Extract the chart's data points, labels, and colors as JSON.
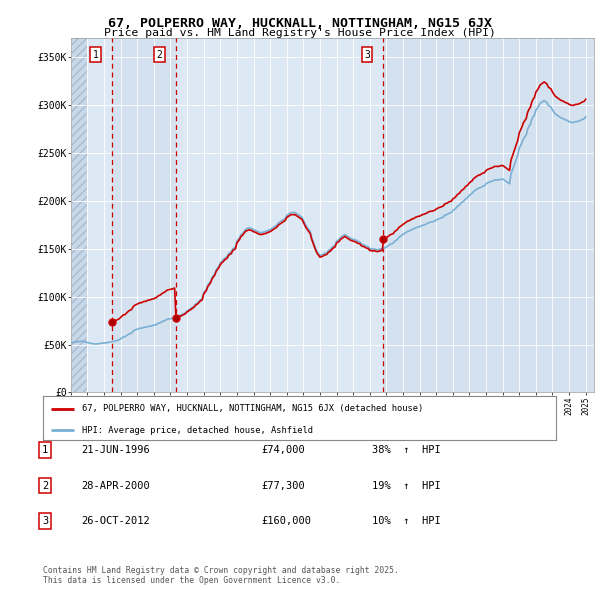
{
  "title_line1": "67, POLPERRO WAY, HUCKNALL, NOTTINGHAM, NG15 6JX",
  "title_line2": "Price paid vs. HM Land Registry's House Price Index (HPI)",
  "legend_label_red": "67, POLPERRO WAY, HUCKNALL, NOTTINGHAM, NG15 6JX (detached house)",
  "legend_label_blue": "HPI: Average price, detached house, Ashfield",
  "footer_line1": "Contains HM Land Registry data © Crown copyright and database right 2025.",
  "footer_line2": "This data is licensed under the Open Government Licence v3.0.",
  "transactions": [
    {
      "num": 1,
      "date": "21-JUN-1996",
      "price": 74000,
      "pct": "38%",
      "dir": "↑",
      "year": 1996.47
    },
    {
      "num": 2,
      "date": "28-APR-2000",
      "price": 77300,
      "pct": "19%",
      "dir": "↑",
      "year": 2000.32
    },
    {
      "num": 3,
      "date": "26-OCT-2012",
      "price": 160000,
      "pct": "10%",
      "dir": "↑",
      "year": 2012.82
    }
  ],
  "ylim": [
    0,
    370000
  ],
  "yticks": [
    0,
    50000,
    100000,
    150000,
    200000,
    250000,
    300000,
    350000
  ],
  "ytick_labels": [
    "£0",
    "£50K",
    "£100K",
    "£150K",
    "£200K",
    "£250K",
    "£300K",
    "£350K"
  ],
  "background_plot": "#dce9f5",
  "background_hatch": "#c8d8ea",
  "highlight_col": "#cddcec",
  "grid_color": "#ffffff",
  "red_color": "#cc0000",
  "blue_color": "#7aafd4",
  "hpi_data": {
    "years": [
      1994.0,
      1994.083,
      1994.167,
      1994.25,
      1994.333,
      1994.417,
      1994.5,
      1994.583,
      1994.667,
      1994.75,
      1994.833,
      1994.917,
      1995.0,
      1995.083,
      1995.167,
      1995.25,
      1995.333,
      1995.417,
      1995.5,
      1995.583,
      1995.667,
      1995.75,
      1995.833,
      1995.917,
      1996.0,
      1996.083,
      1996.167,
      1996.25,
      1996.333,
      1996.417,
      1996.5,
      1996.583,
      1996.667,
      1996.75,
      1996.833,
      1996.917,
      1997.0,
      1997.083,
      1997.167,
      1997.25,
      1997.333,
      1997.417,
      1997.5,
      1997.583,
      1997.667,
      1997.75,
      1997.833,
      1997.917,
      1998.0,
      1998.083,
      1998.167,
      1998.25,
      1998.333,
      1998.417,
      1998.5,
      1998.583,
      1998.667,
      1998.75,
      1998.833,
      1998.917,
      1999.0,
      1999.083,
      1999.167,
      1999.25,
      1999.333,
      1999.417,
      1999.5,
      1999.583,
      1999.667,
      1999.75,
      1999.833,
      1999.917,
      2000.0,
      2000.083,
      2000.167,
      2000.25,
      2000.333,
      2000.417,
      2000.5,
      2000.583,
      2000.667,
      2000.75,
      2000.833,
      2000.917,
      2001.0,
      2001.083,
      2001.167,
      2001.25,
      2001.333,
      2001.417,
      2001.5,
      2001.583,
      2001.667,
      2001.75,
      2001.833,
      2001.917,
      2002.0,
      2002.083,
      2002.167,
      2002.25,
      2002.333,
      2002.417,
      2002.5,
      2002.583,
      2002.667,
      2002.75,
      2002.833,
      2002.917,
      2003.0,
      2003.083,
      2003.167,
      2003.25,
      2003.333,
      2003.417,
      2003.5,
      2003.583,
      2003.667,
      2003.75,
      2003.833,
      2003.917,
      2004.0,
      2004.083,
      2004.167,
      2004.25,
      2004.333,
      2004.417,
      2004.5,
      2004.583,
      2004.667,
      2004.75,
      2004.833,
      2004.917,
      2005.0,
      2005.083,
      2005.167,
      2005.25,
      2005.333,
      2005.417,
      2005.5,
      2005.583,
      2005.667,
      2005.75,
      2005.833,
      2005.917,
      2006.0,
      2006.083,
      2006.167,
      2006.25,
      2006.333,
      2006.417,
      2006.5,
      2006.583,
      2006.667,
      2006.75,
      2006.833,
      2006.917,
      2007.0,
      2007.083,
      2007.167,
      2007.25,
      2007.333,
      2007.417,
      2007.5,
      2007.583,
      2007.667,
      2007.75,
      2007.833,
      2007.917,
      2008.0,
      2008.083,
      2008.167,
      2008.25,
      2008.333,
      2008.417,
      2008.5,
      2008.583,
      2008.667,
      2008.75,
      2008.833,
      2008.917,
      2009.0,
      2009.083,
      2009.167,
      2009.25,
      2009.333,
      2009.417,
      2009.5,
      2009.583,
      2009.667,
      2009.75,
      2009.833,
      2009.917,
      2010.0,
      2010.083,
      2010.167,
      2010.25,
      2010.333,
      2010.417,
      2010.5,
      2010.583,
      2010.667,
      2010.75,
      2010.833,
      2010.917,
      2011.0,
      2011.083,
      2011.167,
      2011.25,
      2011.333,
      2011.417,
      2011.5,
      2011.583,
      2011.667,
      2011.75,
      2011.833,
      2011.917,
      2012.0,
      2012.083,
      2012.167,
      2012.25,
      2012.333,
      2012.417,
      2012.5,
      2012.583,
      2012.667,
      2012.75,
      2012.833,
      2012.917,
      2013.0,
      2013.083,
      2013.167,
      2013.25,
      2013.333,
      2013.417,
      2013.5,
      2013.583,
      2013.667,
      2013.75,
      2013.833,
      2013.917,
      2014.0,
      2014.083,
      2014.167,
      2014.25,
      2014.333,
      2014.417,
      2014.5,
      2014.583,
      2014.667,
      2014.75,
      2014.833,
      2014.917,
      2015.0,
      2015.083,
      2015.167,
      2015.25,
      2015.333,
      2015.417,
      2015.5,
      2015.583,
      2015.667,
      2015.75,
      2015.833,
      2015.917,
      2016.0,
      2016.083,
      2016.167,
      2016.25,
      2016.333,
      2016.417,
      2016.5,
      2016.583,
      2016.667,
      2016.75,
      2016.833,
      2016.917,
      2017.0,
      2017.083,
      2017.167,
      2017.25,
      2017.333,
      2017.417,
      2017.5,
      2017.583,
      2017.667,
      2017.75,
      2017.833,
      2017.917,
      2018.0,
      2018.083,
      2018.167,
      2018.25,
      2018.333,
      2018.417,
      2018.5,
      2018.583,
      2018.667,
      2018.75,
      2018.833,
      2018.917,
      2019.0,
      2019.083,
      2019.167,
      2019.25,
      2019.333,
      2019.417,
      2019.5,
      2019.583,
      2019.667,
      2019.75,
      2019.833,
      2019.917,
      2020.0,
      2020.083,
      2020.167,
      2020.25,
      2020.333,
      2020.417,
      2020.5,
      2020.583,
      2020.667,
      2020.75,
      2020.833,
      2020.917,
      2021.0,
      2021.083,
      2021.167,
      2021.25,
      2021.333,
      2021.417,
      2021.5,
      2021.583,
      2021.667,
      2021.75,
      2021.833,
      2021.917,
      2022.0,
      2022.083,
      2022.167,
      2022.25,
      2022.333,
      2022.417,
      2022.5,
      2022.583,
      2022.667,
      2022.75,
      2022.833,
      2022.917,
      2023.0,
      2023.083,
      2023.167,
      2023.25,
      2023.333,
      2023.417,
      2023.5,
      2023.583,
      2023.667,
      2023.75,
      2023.833,
      2023.917,
      2024.0,
      2024.083,
      2024.167,
      2024.25,
      2024.333,
      2024.417,
      2024.5,
      2024.583,
      2024.667,
      2024.75,
      2024.833,
      2024.917,
      2025.0
    ],
    "values": [
      52000,
      52200,
      52400,
      52500,
      52700,
      52900,
      53000,
      53200,
      53400,
      53500,
      53000,
      52500,
      52000,
      51800,
      51500,
      51000,
      50800,
      50600,
      50500,
      50600,
      50800,
      51000,
      51300,
      51600,
      51500,
      51700,
      51900,
      52000,
      52400,
      52800,
      53000,
      53300,
      53600,
      54000,
      54500,
      55000,
      56000,
      57000,
      58000,
      58000,
      59000,
      60000,
      61000,
      61500,
      62000,
      64000,
      65000,
      65500,
      66000,
      66500,
      67000,
      67000,
      67500,
      68000,
      68000,
      68500,
      69000,
      69000,
      69500,
      69800,
      70000,
      70500,
      71000,
      72000,
      72500,
      73000,
      74000,
      74500,
      75000,
      76000,
      76500,
      76800,
      77000,
      77200,
      77500,
      78000,
      78300,
      78600,
      80000,
      80500,
      81000,
      82000,
      82500,
      83500,
      85000,
      86000,
      87000,
      88000,
      89000,
      90000,
      92000,
      93000,
      94000,
      96000,
      97000,
      98000,
      104000,
      106000,
      108000,
      112000,
      114000,
      116000,
      120000,
      122000,
      124000,
      128000,
      130000,
      132000,
      135000,
      137000,
      138000,
      140000,
      141000,
      142000,
      145000,
      146000,
      147000,
      150000,
      151000,
      152000,
      158000,
      160000,
      162000,
      165000,
      166000,
      168000,
      170000,
      171000,
      171500,
      172000,
      171500,
      171000,
      170000,
      169500,
      169000,
      168000,
      167500,
      167000,
      167000,
      167500,
      168000,
      168000,
      169000,
      169500,
      170000,
      171000,
      172000,
      173000,
      174000,
      175000,
      177000,
      178000,
      179000,
      180000,
      181000,
      182000,
      185000,
      186000,
      187000,
      188000,
      188000,
      188000,
      188000,
      187000,
      186000,
      185000,
      184000,
      183000,
      180000,
      177000,
      174000,
      172000,
      170000,
      168000,
      162000,
      158000,
      154000,
      150000,
      147000,
      145000,
      143000,
      143500,
      144000,
      145000,
      145500,
      146000,
      148000,
      149000,
      150000,
      152000,
      153000,
      154000,
      158000,
      159000,
      160000,
      162000,
      163000,
      164000,
      165000,
      164000,
      163000,
      162000,
      161000,
      160500,
      160000,
      159500,
      159000,
      158000,
      157500,
      157000,
      155000,
      154500,
      154000,
      153000,
      152500,
      152000,
      150000,
      150000,
      149500,
      150000,
      149500,
      149000,
      149000,
      149500,
      150000,
      150000,
      150500,
      151000,
      152000,
      153000,
      154000,
      155000,
      155500,
      156000,
      158000,
      159000,
      160000,
      162000,
      163000,
      164000,
      165000,
      166000,
      167000,
      168000,
      168500,
      169000,
      170000,
      170500,
      171000,
      172000,
      172500,
      173000,
      173000,
      174000,
      174500,
      175000,
      175500,
      176000,
      177000,
      177500,
      178000,
      178000,
      178500,
      179000,
      180000,
      181000,
      181500,
      182000,
      182500,
      183000,
      185000,
      185500,
      186000,
      187000,
      187500,
      188000,
      190000,
      191000,
      192000,
      194000,
      195000,
      196000,
      198000,
      199000,
      200000,
      202000,
      203000,
      204000,
      206000,
      207000,
      208000,
      210000,
      211000,
      212000,
      213000,
      213500,
      214000,
      215000,
      215500,
      216000,
      218000,
      219000,
      219500,
      220000,
      220500,
      221000,
      222000,
      222000,
      222000,
      222000,
      222500,
      222800,
      223000,
      222000,
      221000,
      220000,
      219000,
      218000,
      228000,
      232000,
      236000,
      240000,
      244000,
      248000,
      255000,
      258000,
      261000,
      265000,
      267000,
      269000,
      275000,
      278000,
      280000,
      285000,
      288000,
      290000,
      295000,
      297000,
      299000,
      302000,
      303000,
      304000,
      305000,
      304000,
      303000,
      300000,
      299000,
      298000,
      295000,
      293000,
      291000,
      290000,
      289000,
      288000,
      287000,
      286500,
      286000,
      285000,
      284500,
      284000,
      283000,
      282500,
      282000,
      282000,
      282500,
      283000,
      283000,
      283500,
      284000,
      285000,
      285500,
      286000,
      288000
    ]
  },
  "xmin": 1994,
  "xmax": 2025.5
}
